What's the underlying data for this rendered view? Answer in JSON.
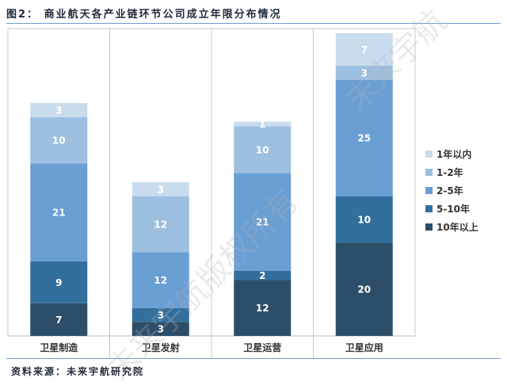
{
  "header": {
    "title": "图2： 商业航天各产业链环节公司成立年限分布情况"
  },
  "footer": {
    "source": "资料来源：未来宇航研究院"
  },
  "watermark": {
    "text": "未来宇航版权所有"
  },
  "chart_data": {
    "type": "bar",
    "stacked": true,
    "categories": [
      "卫星制造",
      "卫星发射",
      "卫星运营",
      "卫星应用"
    ],
    "series": [
      {
        "name": "10年以上",
        "values": [
          7,
          3,
          12,
          20
        ],
        "color": "#2d4e68"
      },
      {
        "name": "5-10年",
        "values": [
          9,
          3,
          2,
          10
        ],
        "color": "#336f9c"
      },
      {
        "name": "2-5年",
        "values": [
          21,
          12,
          21,
          25
        ],
        "color": "#6a9fd4"
      },
      {
        "name": "1-2年",
        "values": [
          10,
          12,
          10,
          3
        ],
        "color": "#9dbfe0"
      },
      {
        "name": "1年以内",
        "values": [
          3,
          3,
          1,
          7
        ],
        "color": "#c9dcee"
      }
    ],
    "legend_order": [
      "1年以内",
      "1-2年",
      "2-5年",
      "5-10年",
      "10年以上"
    ],
    "legend_position": "right",
    "ylim": [
      0,
      66
    ],
    "grid": false
  }
}
